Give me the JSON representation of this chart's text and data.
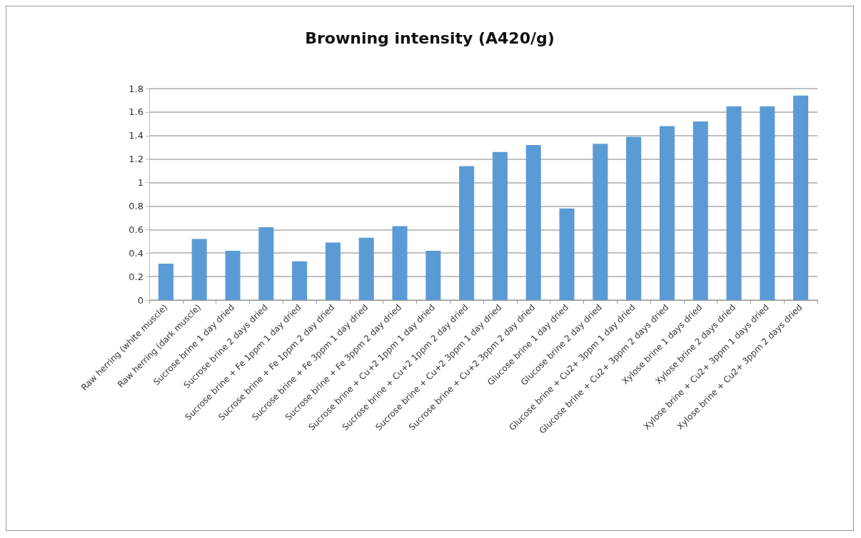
{
  "chart_data": {
    "type": "bar",
    "title": "Browning intensity (A420/g)",
    "categories": [
      "Raw herring (white muscle)",
      "Raw herring (dark muscle)",
      "Sucrose brine 1 day dried",
      "Sucrose brine 2 days dried",
      "Sucrose brine + Fe 1ppm 1 day dried",
      "Sucrose brine + Fe 1ppm 2 day dried",
      "Sucrose brine + Fe 3ppm 1 day dried",
      "Sucrose brine + Fe 3ppm 2 day dried",
      "Sucrose brine + Cu+2 1ppm 1 day dried",
      "Sucrose brine + Cu+2 1ppm 2 day dried",
      "Sucrose brine + Cu+2 3ppm 1 day dried",
      "Sucrose brine + Cu+2 3ppm 2 day dried",
      "Glucose brine 1 day dried",
      "Glucose brine 2 day dried",
      "Glucose brine + Cu2+ 3ppm 1 day dried",
      "Glucose brine + Cu2+ 3ppm 2 days dried",
      "Xylose brine 1 days dried",
      "Xylose brine 2 days dried",
      "Xylose brine + Cu2+ 3ppm 1 days dried",
      "Xylose brine + Cu2+ 3ppm 2 days dried"
    ],
    "values": [
      0.31,
      0.52,
      0.42,
      0.62,
      0.33,
      0.49,
      0.53,
      0.63,
      0.42,
      1.14,
      1.26,
      1.32,
      0.78,
      1.33,
      1.39,
      1.48,
      1.52,
      1.65,
      1.65,
      1.74
    ],
    "color": "#5b9bd5",
    "ylim": [
      0,
      1.8
    ],
    "yticks": [
      0,
      0.2,
      0.4,
      0.6,
      0.8,
      1,
      1.2,
      1.4,
      1.6,
      1.8
    ],
    "grid": "y"
  }
}
